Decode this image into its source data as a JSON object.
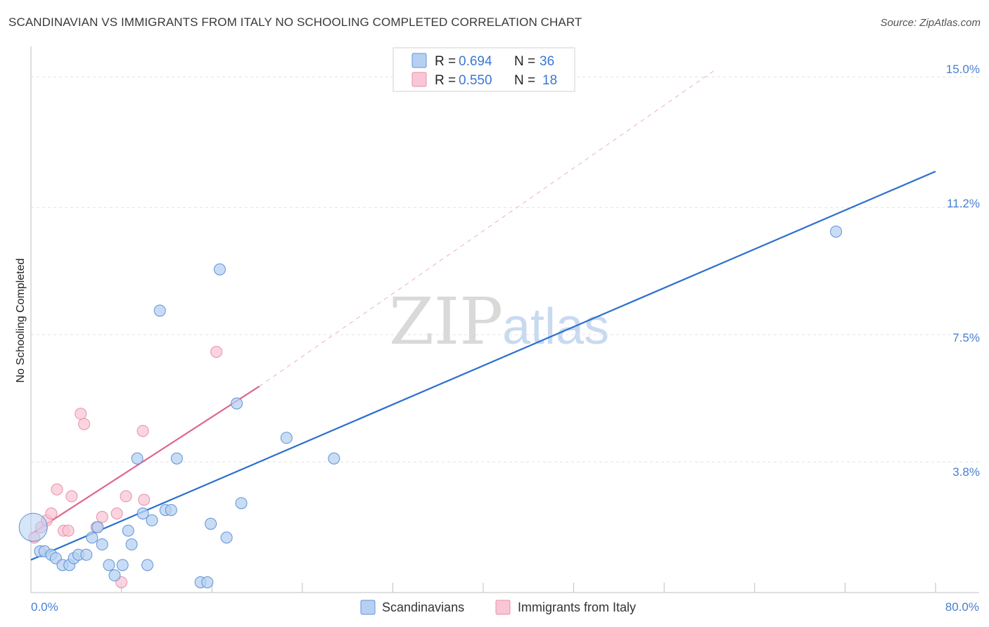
{
  "title": "SCANDINAVIAN VS IMMIGRANTS FROM ITALY NO SCHOOLING COMPLETED CORRELATION CHART",
  "source": "Source: ZipAtlas.com",
  "watermark": {
    "zip": "ZIP",
    "atlas": "atlas"
  },
  "colors": {
    "blue_fill": "#b7d0f2",
    "blue_stroke": "#5f93d6",
    "blue_line": "#2a6fcf",
    "pink_fill": "#f8c6d4",
    "pink_stroke": "#e690ab",
    "pink_line": "#e0668f",
    "grid": "#e2e2e2",
    "axis_text": "#4a7fd0"
  },
  "legend": {
    "rows": [
      {
        "r_label": "R =",
        "r_value": "0.694",
        "n_label": "N =",
        "n_value": "36",
        "color": "#b7d0f2",
        "stroke": "#5f93d6"
      },
      {
        "r_label": "R =",
        "r_value": "0.550",
        "n_label": "N =",
        "n_value": "18",
        "color": "#f8c6d4",
        "stroke": "#e690ab"
      }
    ]
  },
  "bottom_legend": [
    {
      "label": "Scandinavians",
      "color": "#b7d0f2",
      "stroke": "#5f93d6"
    },
    {
      "label": "Immigrants from Italy",
      "color": "#f8c6d4",
      "stroke": "#e690ab"
    }
  ],
  "chart_data": {
    "type": "scatter",
    "title": "SCANDINAVIAN VS IMMIGRANTS FROM ITALY NO SCHOOLING COMPLETED CORRELATION CHART",
    "xlabel": "",
    "ylabel": "No Schooling Completed",
    "xlim": [
      0,
      80
    ],
    "ylim": [
      0,
      15.6
    ],
    "x_tick_labels": [
      "0.0%",
      "80.0%"
    ],
    "y_ticks": [
      3.8,
      7.5,
      11.2,
      15.0
    ],
    "y_tick_labels": [
      "3.8%",
      "7.5%",
      "11.2%",
      "15.0%"
    ],
    "grid": true,
    "series": [
      {
        "name": "Scandinavians",
        "r": 0.694,
        "n": 36,
        "points": [
          [
            0.8,
            1.2
          ],
          [
            1.2,
            1.2
          ],
          [
            1.8,
            1.1
          ],
          [
            2.2,
            1.0
          ],
          [
            2.8,
            0.8
          ],
          [
            3.4,
            0.8
          ],
          [
            3.8,
            1.0
          ],
          [
            4.2,
            1.1
          ],
          [
            4.9,
            1.1
          ],
          [
            5.4,
            1.6
          ],
          [
            5.9,
            1.9
          ],
          [
            6.3,
            1.4
          ],
          [
            6.9,
            0.8
          ],
          [
            7.4,
            0.5
          ],
          [
            8.1,
            0.8
          ],
          [
            8.6,
            1.8
          ],
          [
            8.9,
            1.4
          ],
          [
            9.4,
            3.9
          ],
          [
            9.9,
            2.3
          ],
          [
            10.3,
            0.8
          ],
          [
            10.7,
            2.1
          ],
          [
            11.4,
            8.2
          ],
          [
            11.9,
            2.4
          ],
          [
            12.4,
            2.4
          ],
          [
            12.9,
            3.9
          ],
          [
            15.0,
            0.3
          ],
          [
            15.6,
            0.3
          ],
          [
            15.9,
            2.0
          ],
          [
            16.7,
            9.4
          ],
          [
            17.3,
            1.6
          ],
          [
            18.2,
            5.5
          ],
          [
            18.6,
            2.6
          ],
          [
            22.6,
            4.5
          ],
          [
            26.8,
            3.9
          ],
          [
            71.2,
            10.5
          ],
          [
            0.2,
            1.9
          ]
        ],
        "trend": {
          "x0": 0,
          "y0": 0.95,
          "x1": 80,
          "y1": 12.25
        }
      },
      {
        "name": "Immigrants from Italy",
        "r": 0.55,
        "n": 18,
        "points": [
          [
            0.3,
            1.6
          ],
          [
            0.9,
            1.9
          ],
          [
            1.4,
            2.1
          ],
          [
            1.8,
            2.3
          ],
          [
            2.3,
            3.0
          ],
          [
            2.9,
            1.8
          ],
          [
            3.3,
            1.8
          ],
          [
            3.6,
            2.8
          ],
          [
            4.4,
            5.2
          ],
          [
            4.7,
            4.9
          ],
          [
            5.8,
            1.9
          ],
          [
            6.3,
            2.2
          ],
          [
            7.6,
            2.3
          ],
          [
            8.0,
            0.3
          ],
          [
            8.4,
            2.8
          ],
          [
            9.9,
            4.7
          ],
          [
            10.0,
            2.7
          ],
          [
            16.4,
            7.0
          ]
        ],
        "trend": {
          "x0": 0,
          "y0": 1.7,
          "x1": 20.2,
          "y1": 6.0
        },
        "trend_dashed": {
          "x0": 20.2,
          "y0": 6.0,
          "x1": 60.5,
          "y1": 15.2
        }
      }
    ]
  }
}
